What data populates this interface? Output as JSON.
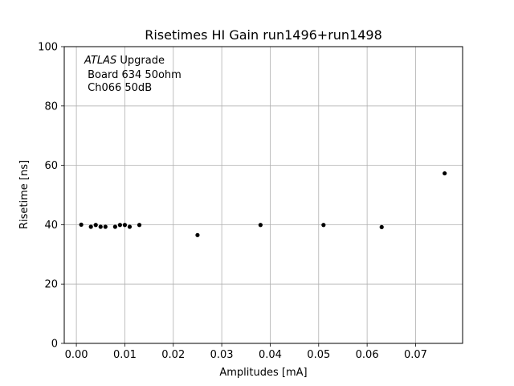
{
  "chart_data": {
    "type": "scatter",
    "title": "Risetimes HI Gain run1496+run1498",
    "xlabel": "Amplitudes [mA]",
    "ylabel": "Risetime [ns]",
    "xlim": [
      -0.0025,
      0.0797
    ],
    "ylim": [
      0,
      100
    ],
    "xticks": [
      0.0,
      0.01,
      0.02,
      0.03,
      0.04,
      0.05,
      0.06,
      0.07
    ],
    "xtick_labels": [
      "0.00",
      "0.01",
      "0.02",
      "0.03",
      "0.04",
      "0.05",
      "0.06",
      "0.07"
    ],
    "yticks": [
      0,
      20,
      40,
      60,
      80,
      100
    ],
    "ytick_labels": [
      "0",
      "20",
      "40",
      "60",
      "80",
      "100"
    ],
    "grid": true,
    "marker_color": "#000000",
    "annotation": {
      "atlas": "ATLAS",
      "line1_rest": " Upgrade",
      "line2": " Board 634 50ohm",
      "line3": " Ch066 50dB"
    },
    "series": [
      {
        "x": [
          0.001,
          0.003,
          0.004,
          0.005,
          0.006,
          0.008,
          0.009,
          0.01,
          0.011,
          0.013,
          0.025,
          0.038,
          0.051,
          0.063,
          0.076
        ],
        "y": [
          40.0,
          39.3,
          39.9,
          39.3,
          39.3,
          39.3,
          39.9,
          39.9,
          39.3,
          39.9,
          36.5,
          39.9,
          39.9,
          39.2,
          57.3
        ]
      }
    ]
  }
}
